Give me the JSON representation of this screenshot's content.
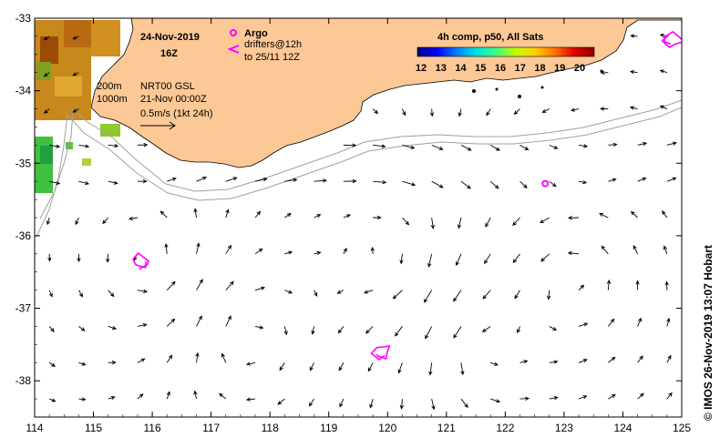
{
  "title": {
    "date": "24-Nov-2019",
    "time": "16Z"
  },
  "legend": {
    "argo_label": "Argo",
    "drifters_label": "drifters@12h",
    "drifters_until": "to 25/11 12Z",
    "depth_200": "200m",
    "depth_1000": "1000m",
    "product": "NRT00 GSL",
    "product_time": "21-Nov 00:00Z",
    "speed_scale": "0.5m/s (1kt 24h)"
  },
  "colorbar": {
    "title": "4h comp, p50, All Sats",
    "ticks": [
      "12",
      "13",
      "14",
      "15",
      "16",
      "17",
      "18",
      "19",
      "20"
    ],
    "colors": [
      "#00007f",
      "#0000ff",
      "#0080ff",
      "#00e0e0",
      "#40ff80",
      "#c0ff00",
      "#ffd000",
      "#ff7000",
      "#e00000",
      "#8b0000"
    ]
  },
  "axes": {
    "x_ticks": [
      "114",
      "115",
      "116",
      "117",
      "118",
      "119",
      "120",
      "121",
      "122",
      "123",
      "124",
      "125"
    ],
    "y_ticks": [
      "-33",
      "-34",
      "-35",
      "-36",
      "-37",
      "-38"
    ],
    "lon_range": [
      114,
      125
    ],
    "lat_range": [
      -38.5,
      -33
    ]
  },
  "colors": {
    "land": "#fcc896",
    "argo": "#ff00ff",
    "drifter": "#ff00ff",
    "isobath": "#a0a0a0",
    "arrow": "#000000"
  },
  "argo_float": {
    "lon": 122.68,
    "lat": -35.28
  },
  "drifter_tracks": [
    {
      "lon": 115.8,
      "lat": -36.35
    },
    {
      "lon": 119.9,
      "lat": -37.6
    },
    {
      "lon": 124.85,
      "lat": -33.3
    }
  ],
  "credit": "© IMOS 26-Nov-2019 13:07 Hobart"
}
